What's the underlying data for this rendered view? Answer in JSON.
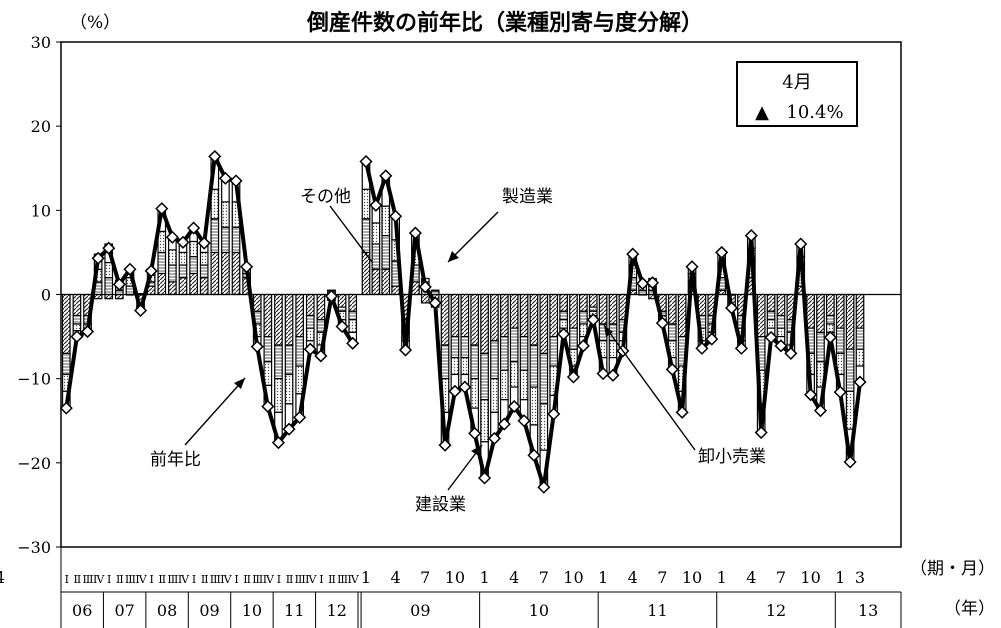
{
  "chart_data": {
    "type": "bar",
    "title": "倒産件数の前年比（業種別寄与度分解）",
    "y_unit_label": "（%）",
    "x_unit_label_period": "（期・月）",
    "x_unit_label_year": "（年）",
    "ylim": [
      -30,
      30
    ],
    "y_ticks": [
      30,
      20,
      10,
      0,
      -10,
      -20,
      -30
    ],
    "y_tick_labels": [
      "30",
      "20",
      "10",
      "0",
      "−10",
      "−20",
      "−30"
    ],
    "grid": false,
    "legend_box": {
      "line1": "4月",
      "marker": "▲",
      "line2": "10.4%"
    },
    "annotations": [
      {
        "text": "その他",
        "target": "others"
      },
      {
        "text": "製造業",
        "target": "manufacturing"
      },
      {
        "text": "前年比",
        "target": "total"
      },
      {
        "text": "建設業",
        "target": "construction"
      },
      {
        "text": "卸小売業",
        "target": "wholesale_retail"
      }
    ],
    "x_tick_labels": [
      "I",
      "II",
      "III",
      "IV",
      "I",
      "II",
      "III",
      "IV",
      "I",
      "II",
      "III",
      "IV",
      "I",
      "II",
      "III",
      "IV",
      "I",
      "II",
      "III",
      "IV",
      "I",
      "II",
      "III",
      "IV",
      "I",
      "II",
      "III",
      "IV",
      "1",
      "4",
      "7",
      "10",
      "1",
      "4",
      "7",
      "10",
      "1",
      "4",
      "7",
      "10",
      "1",
      "4",
      "7",
      "10",
      "1",
      "3",
      "4"
    ],
    "year_labels": [
      "06",
      "07",
      "08",
      "09",
      "10",
      "11",
      "12",
      "09",
      "10",
      "11",
      "12",
      "13"
    ],
    "series_keys": [
      "construction",
      "manufacturing",
      "wholesale_retail",
      "others"
    ],
    "series_colors": {
      "construction": "#ffffff",
      "manufacturing": "#ffffff",
      "wholesale_retail": "#ffffff",
      "others": "#ffffff",
      "total_line": "#000000"
    },
    "total": [
      -13.5,
      -5.0,
      -4.4,
      4.3,
      5.5,
      1.2,
      3.0,
      -1.9,
      2.8,
      10.2,
      6.8,
      6.2,
      7.9,
      6.1,
      16.4,
      13.8,
      13.5,
      3.3,
      -6.2,
      -13.3,
      -17.6,
      -16.0,
      -14.6,
      -6.5,
      -7.3,
      -0.2,
      -3.8,
      -5.8,
      15.8,
      10.6,
      14.1,
      9.3,
      -6.6,
      7.3,
      0.9,
      -1.0,
      -17.9,
      -11.5,
      -11.0,
      -16.5,
      -21.8,
      -17.1,
      -15.4,
      -13.3,
      -15.0,
      -19.1,
      -22.9,
      -14.2,
      -4.7,
      -9.8,
      -6.1,
      -3.0,
      -9.4,
      -9.6,
      -6.7,
      4.8,
      1.3,
      1.4,
      -3.4,
      -8.9,
      -14.0,
      3.3,
      -6.4,
      -5.3,
      5.0,
      -1.6,
      -6.4,
      7.0,
      -16.4,
      -5.1,
      -6.1,
      -7.0,
      6.0,
      -11.9,
      -13.8,
      -5.1,
      -11.6,
      -19.9,
      -10.4
    ],
    "construction": [
      -7.0,
      -2.5,
      -2.5,
      -0.5,
      -0.5,
      -0.5,
      0.0,
      -1.5,
      1.0,
      2.5,
      1.5,
      2.0,
      2.5,
      2.0,
      5.0,
      5.0,
      5.0,
      2.0,
      -2.0,
      -5.0,
      -6.0,
      -6.0,
      -5.0,
      -2.5,
      -3.0,
      -0.5,
      -1.5,
      -2.0,
      5.0,
      3.0,
      3.0,
      1.0,
      -3.0,
      1.5,
      -1.0,
      -1.0,
      -6.0,
      -5.0,
      -5.0,
      -6.0,
      -7.0,
      -5.5,
      -5.0,
      -4.0,
      -5.0,
      -6.0,
      -7.0,
      -5.0,
      -2.0,
      -4.0,
      -2.0,
      -1.5,
      -3.5,
      -3.5,
      -3.0,
      0.5,
      0.0,
      -0.5,
      -2.0,
      -3.5,
      -5.0,
      0.5,
      -2.5,
      -2.5,
      0.5,
      -1.5,
      -2.5,
      2.0,
      -5.0,
      -2.0,
      -2.5,
      -3.0,
      1.0,
      -4.0,
      -4.5,
      -2.5,
      -4.0,
      -6.5,
      -4.0
    ],
    "manufacturing": [
      -2.5,
      -1.0,
      -1.0,
      1.5,
      2.0,
      0.5,
      1.0,
      -0.5,
      0.5,
      2.5,
      2.0,
      1.5,
      2.0,
      1.5,
      4.0,
      3.0,
      3.0,
      0.5,
      -1.5,
      -3.0,
      -4.0,
      -3.5,
      -3.5,
      -1.5,
      -1.5,
      0.5,
      -0.5,
      -1.0,
      4.0,
      3.0,
      4.0,
      3.0,
      -1.5,
      2.0,
      1.0,
      0.5,
      -4.0,
      -2.5,
      -2.5,
      -4.0,
      -5.5,
      -4.5,
      -4.0,
      -4.0,
      -4.0,
      -5.0,
      -6.0,
      -3.5,
      -1.0,
      -2.5,
      -1.5,
      -0.5,
      -2.0,
      -2.0,
      -1.5,
      1.5,
      0.5,
      0.5,
      -0.5,
      -2.0,
      -3.5,
      1.0,
      -1.5,
      -1.0,
      1.5,
      0.0,
      -1.5,
      2.0,
      -4.0,
      -1.0,
      -1.5,
      -1.5,
      2.0,
      -3.0,
      -3.5,
      -1.0,
      -3.0,
      -5.0,
      -2.5
    ],
    "wholesale_retail": [
      -2.0,
      -0.8,
      -0.5,
      1.5,
      1.8,
      0.5,
      1.0,
      0.0,
      0.8,
      2.5,
      1.8,
      1.5,
      1.8,
      1.5,
      3.5,
      3.0,
      3.0,
      0.8,
      -1.5,
      -2.8,
      -4.0,
      -3.5,
      -3.3,
      -1.5,
      -1.5,
      -0.2,
      -1.0,
      -1.5,
      3.5,
      2.5,
      3.5,
      2.5,
      -1.0,
      2.0,
      0.5,
      -0.5,
      -4.0,
      -2.0,
      -2.0,
      -3.5,
      -5.0,
      -4.0,
      -3.5,
      -3.0,
      -3.5,
      -4.5,
      -5.5,
      -3.5,
      -1.0,
      -2.0,
      -1.5,
      -0.5,
      -2.0,
      -2.0,
      -1.0,
      1.5,
      0.5,
      0.5,
      -0.5,
      -2.0,
      -3.0,
      1.0,
      -1.5,
      -1.0,
      1.5,
      0.0,
      -1.5,
      1.5,
      -4.0,
      -1.0,
      -1.0,
      -1.5,
      1.5,
      -2.5,
      -3.0,
      -1.0,
      -2.5,
      -4.5,
      -2.0
    ],
    "others": [
      -2.0,
      -0.7,
      -0.4,
      1.8,
      2.2,
      0.7,
      1.0,
      0.1,
      0.5,
      2.7,
      1.5,
      1.2,
      1.6,
      1.1,
      3.9,
      2.8,
      2.5,
      0.0,
      -1.2,
      -2.5,
      -3.6,
      -3.0,
      -2.8,
      -1.0,
      -1.3,
      0.0,
      -0.8,
      -1.3,
      3.3,
      2.1,
      3.6,
      2.8,
      -1.1,
      1.8,
      0.4,
      0.0,
      -3.9,
      -2.0,
      -1.5,
      -3.0,
      -4.3,
      -3.1,
      -2.9,
      -2.3,
      -2.5,
      -3.6,
      -4.4,
      -2.2,
      -0.7,
      -1.3,
      -1.1,
      -0.5,
      -1.9,
      -2.1,
      -1.2,
      1.3,
      0.3,
      0.9,
      -0.4,
      -1.4,
      -2.5,
      0.8,
      -0.9,
      -0.8,
      1.5,
      -0.1,
      -0.9,
      1.5,
      -3.4,
      -1.1,
      -1.1,
      -1.0,
      1.5,
      -2.4,
      -2.8,
      -0.6,
      -2.1,
      -3.9,
      -1.9
    ]
  }
}
